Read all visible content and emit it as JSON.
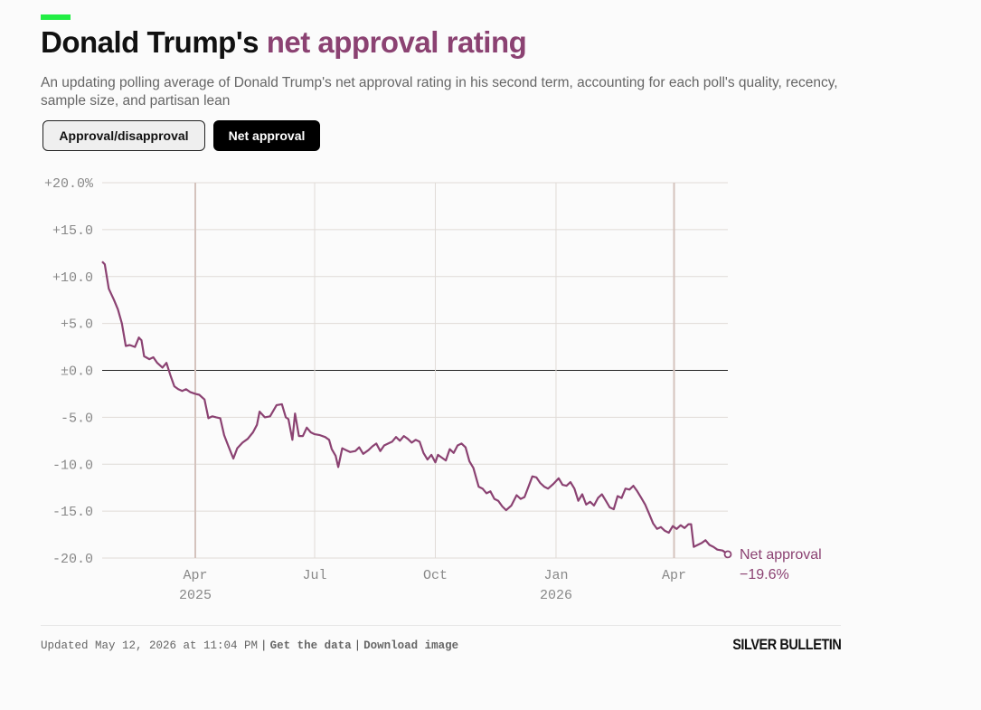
{
  "colors": {
    "accent": "#22ee44",
    "series": "#8b4272",
    "highlight_grid": "#d4c3bd",
    "grid": "#e0dbd7",
    "zero": "#222222"
  },
  "title": {
    "main": "Donald Trump's",
    "highlight": "net approval rating"
  },
  "subtitle": "An updating polling average of Donald Trump's net approval rating in his second term, accounting for each poll's quality, recency, sample size, and partisan lean",
  "toggle": {
    "option_a": "Approval/disapproval",
    "option_b": "Net approval",
    "selected": "Net approval"
  },
  "chart_data": {
    "type": "line",
    "title": "",
    "xlabel": "",
    "ylabel": "",
    "ylim": [
      -20,
      20
    ],
    "xlim": [
      "2025-01-20",
      "2026-05-12"
    ],
    "y_ticks": [
      "+20.0%",
      "+15.0",
      "+10.0",
      "+5.0",
      "±0.0",
      "-5.0",
      "-10.0",
      "-15.0",
      "-20.0"
    ],
    "x_ticks": [
      {
        "date": "2025-04-01",
        "label": "Apr",
        "sublabel": "2025",
        "emphasis": true
      },
      {
        "date": "2025-07-01",
        "label": "Jul",
        "sublabel": "",
        "emphasis": false
      },
      {
        "date": "2025-10-01",
        "label": "Oct",
        "sublabel": "",
        "emphasis": false
      },
      {
        "date": "2026-01-01",
        "label": "Jan",
        "sublabel": "2026",
        "emphasis": false
      },
      {
        "date": "2026-04-01",
        "label": "Apr",
        "sublabel": "",
        "emphasis": true
      }
    ],
    "grid": true,
    "zero_line": true,
    "series": [
      {
        "name": "Net approval",
        "end_value_label": "−19.6%",
        "points": [
          [
            "2025-01-20",
            11.6
          ],
          [
            "2025-01-22",
            11.3
          ],
          [
            "2025-01-25",
            8.7
          ],
          [
            "2025-01-29",
            7.5
          ],
          [
            "2025-02-01",
            6.5
          ],
          [
            "2025-02-04",
            5.0
          ],
          [
            "2025-02-07",
            2.6
          ],
          [
            "2025-02-10",
            2.7
          ],
          [
            "2025-02-14",
            2.5
          ],
          [
            "2025-02-17",
            3.5
          ],
          [
            "2025-02-19",
            3.2
          ],
          [
            "2025-02-21",
            1.5
          ],
          [
            "2025-02-25",
            1.2
          ],
          [
            "2025-02-28",
            1.4
          ],
          [
            "2025-03-03",
            0.8
          ],
          [
            "2025-03-07",
            0.3
          ],
          [
            "2025-03-10",
            0.8
          ],
          [
            "2025-03-13",
            -0.5
          ],
          [
            "2025-03-16",
            -1.7
          ],
          [
            "2025-03-19",
            -2.0
          ],
          [
            "2025-03-22",
            -2.2
          ],
          [
            "2025-03-25",
            -2.0
          ],
          [
            "2025-03-28",
            -2.3
          ],
          [
            "2025-04-01",
            -2.5
          ],
          [
            "2025-04-04",
            -2.6
          ],
          [
            "2025-04-08",
            -3.1
          ],
          [
            "2025-04-11",
            -5.1
          ],
          [
            "2025-04-14",
            -4.9
          ],
          [
            "2025-04-17",
            -5.0
          ],
          [
            "2025-04-20",
            -5.1
          ],
          [
            "2025-04-23",
            -6.9
          ],
          [
            "2025-04-26",
            -8.0
          ],
          [
            "2025-04-30",
            -9.4
          ],
          [
            "2025-05-03",
            -8.3
          ],
          [
            "2025-05-07",
            -7.7
          ],
          [
            "2025-05-11",
            -7.3
          ],
          [
            "2025-05-15",
            -6.6
          ],
          [
            "2025-05-18",
            -5.8
          ],
          [
            "2025-05-20",
            -4.4
          ],
          [
            "2025-05-24",
            -5.0
          ],
          [
            "2025-05-28",
            -4.9
          ],
          [
            "2025-06-02",
            -3.7
          ],
          [
            "2025-06-06",
            -3.6
          ],
          [
            "2025-06-09",
            -5.0
          ],
          [
            "2025-06-11",
            -5.2
          ],
          [
            "2025-06-14",
            -7.4
          ],
          [
            "2025-06-16",
            -4.6
          ],
          [
            "2025-06-19",
            -7.0
          ],
          [
            "2025-06-22",
            -7.0
          ],
          [
            "2025-06-25",
            -6.1
          ],
          [
            "2025-06-28",
            -6.6
          ],
          [
            "2025-07-01",
            -6.8
          ],
          [
            "2025-07-05",
            -6.9
          ],
          [
            "2025-07-09",
            -7.1
          ],
          [
            "2025-07-12",
            -7.4
          ],
          [
            "2025-07-14",
            -8.4
          ],
          [
            "2025-07-17",
            -9.1
          ],
          [
            "2025-07-19",
            -10.3
          ],
          [
            "2025-07-22",
            -8.3
          ],
          [
            "2025-07-25",
            -8.5
          ],
          [
            "2025-07-28",
            -8.7
          ],
          [
            "2025-08-01",
            -8.6
          ],
          [
            "2025-08-04",
            -8.2
          ],
          [
            "2025-08-07",
            -8.9
          ],
          [
            "2025-08-11",
            -8.5
          ],
          [
            "2025-08-14",
            -8.1
          ],
          [
            "2025-08-17",
            -7.8
          ],
          [
            "2025-08-20",
            -8.6
          ],
          [
            "2025-08-23",
            -8.0
          ],
          [
            "2025-08-26",
            -7.8
          ],
          [
            "2025-08-29",
            -7.6
          ],
          [
            "2025-09-01",
            -7.1
          ],
          [
            "2025-09-04",
            -7.5
          ],
          [
            "2025-09-07",
            -7.0
          ],
          [
            "2025-09-10",
            -7.3
          ],
          [
            "2025-09-13",
            -7.7
          ],
          [
            "2025-09-16",
            -7.4
          ],
          [
            "2025-09-19",
            -7.6
          ],
          [
            "2025-09-22",
            -8.8
          ],
          [
            "2025-09-25",
            -9.5
          ],
          [
            "2025-09-28",
            -9.0
          ],
          [
            "2025-10-01",
            -9.8
          ],
          [
            "2025-10-03",
            -9.0
          ],
          [
            "2025-10-06",
            -9.3
          ],
          [
            "2025-10-09",
            -9.6
          ],
          [
            "2025-10-12",
            -8.4
          ],
          [
            "2025-10-15",
            -8.8
          ],
          [
            "2025-10-18",
            -8.0
          ],
          [
            "2025-10-21",
            -7.8
          ],
          [
            "2025-10-24",
            -8.2
          ],
          [
            "2025-10-27",
            -9.7
          ],
          [
            "2025-10-30",
            -10.4
          ],
          [
            "2025-11-03",
            -12.4
          ],
          [
            "2025-11-06",
            -12.6
          ],
          [
            "2025-11-09",
            -13.1
          ],
          [
            "2025-11-12",
            -12.9
          ],
          [
            "2025-11-15",
            -13.7
          ],
          [
            "2025-11-18",
            -13.9
          ],
          [
            "2025-11-21",
            -14.5
          ],
          [
            "2025-11-24",
            -14.9
          ],
          [
            "2025-11-28",
            -14.4
          ],
          [
            "2025-12-02",
            -13.3
          ],
          [
            "2025-12-05",
            -13.7
          ],
          [
            "2025-12-08",
            -13.5
          ],
          [
            "2025-12-11",
            -12.4
          ],
          [
            "2025-12-14",
            -11.3
          ],
          [
            "2025-12-17",
            -11.4
          ],
          [
            "2025-12-20",
            -12.0
          ],
          [
            "2025-12-23",
            -12.4
          ],
          [
            "2025-12-26",
            -12.6
          ],
          [
            "2025-12-30",
            -12.1
          ],
          [
            "2026-01-03",
            -11.5
          ],
          [
            "2026-01-06",
            -12.2
          ],
          [
            "2026-01-09",
            -12.3
          ],
          [
            "2026-01-12",
            -11.9
          ],
          [
            "2026-01-15",
            -12.6
          ],
          [
            "2026-01-18",
            -13.9
          ],
          [
            "2026-01-21",
            -13.2
          ],
          [
            "2026-01-24",
            -14.3
          ],
          [
            "2026-01-27",
            -14.0
          ],
          [
            "2026-01-30",
            -14.4
          ],
          [
            "2026-02-02",
            -13.6
          ],
          [
            "2026-02-05",
            -13.2
          ],
          [
            "2026-02-08",
            -13.9
          ],
          [
            "2026-02-11",
            -14.6
          ],
          [
            "2026-02-14",
            -14.8
          ],
          [
            "2026-02-17",
            -13.4
          ],
          [
            "2026-02-20",
            -13.6
          ],
          [
            "2026-02-23",
            -12.6
          ],
          [
            "2026-02-26",
            -12.7
          ],
          [
            "2026-03-01",
            -12.3
          ],
          [
            "2026-03-04",
            -12.9
          ],
          [
            "2026-03-07",
            -13.6
          ],
          [
            "2026-03-10",
            -14.3
          ],
          [
            "2026-03-13",
            -15.3
          ],
          [
            "2026-03-16",
            -16.3
          ],
          [
            "2026-03-19",
            -16.9
          ],
          [
            "2026-03-22",
            -16.7
          ],
          [
            "2026-03-25",
            -17.1
          ],
          [
            "2026-03-28",
            -17.3
          ],
          [
            "2026-03-31",
            -16.6
          ],
          [
            "2026-04-03",
            -16.9
          ],
          [
            "2026-04-06",
            -16.5
          ],
          [
            "2026-04-09",
            -16.8
          ],
          [
            "2026-04-12",
            -16.4
          ],
          [
            "2026-04-14",
            -16.4
          ],
          [
            "2026-04-16",
            -18.8
          ],
          [
            "2026-04-19",
            -18.6
          ],
          [
            "2026-04-22",
            -18.4
          ],
          [
            "2026-04-25",
            -18.1
          ],
          [
            "2026-04-28",
            -18.6
          ],
          [
            "2026-05-01",
            -18.8
          ],
          [
            "2026-05-04",
            -19.1
          ],
          [
            "2026-05-08",
            -19.2
          ],
          [
            "2026-05-12",
            -19.6
          ]
        ]
      }
    ]
  },
  "footer": {
    "updated": "Updated May 12, 2026 at 11:04 PM",
    "sep": "|",
    "get_data": "Get the data",
    "download": "Download image"
  },
  "brand": "SILVER BULLETIN"
}
